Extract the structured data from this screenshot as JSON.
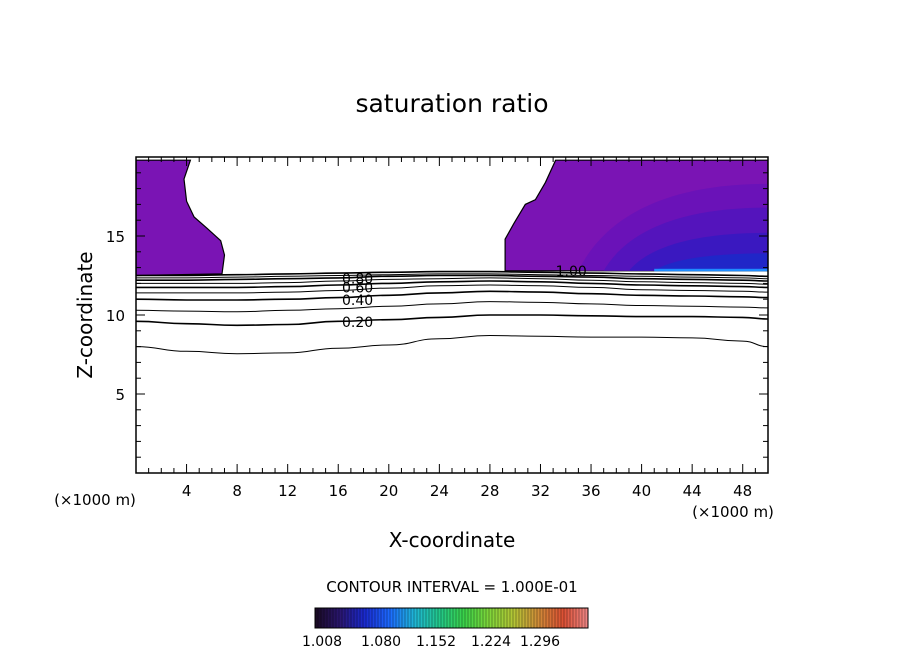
{
  "chart_data": {
    "type": "contour",
    "title": "saturation ratio",
    "xlabel": "X-coordinate",
    "ylabel": "Z-coordinate",
    "x_unit_label": "(×1000 m)",
    "y_unit_label": "(×1000 m)",
    "xlim": [
      0,
      50
    ],
    "ylim": [
      0,
      20
    ],
    "x_ticks": [
      "4",
      "8",
      "12",
      "16",
      "20",
      "24",
      "28",
      "32",
      "36",
      "40",
      "44",
      "48"
    ],
    "y_ticks": [
      "5",
      "10",
      "15"
    ],
    "contour_interval_label": "CONTOUR INTERVAL = 1.000E-01",
    "contour_labels": [
      {
        "text": "0.80",
        "x": 16.3,
        "z": 12.3
      },
      {
        "text": "0.60",
        "x": 16.3,
        "z": 11.75
      },
      {
        "text": "0.40",
        "x": 16.3,
        "z": 10.95
      },
      {
        "text": "0.20",
        "x": 16.3,
        "z": 9.55
      },
      {
        "text": "1.00",
        "x": 33.2,
        "z": 12.8
      }
    ],
    "contour_lines": [
      {
        "level": 0.1,
        "z": [
          8.0,
          7.7,
          7.55,
          7.6,
          7.9,
          8.1,
          8.5,
          8.7,
          8.65,
          8.6,
          8.6,
          8.55,
          8.35,
          8.0
        ]
      },
      {
        "level": 0.2,
        "z": [
          9.6,
          9.45,
          9.35,
          9.4,
          9.6,
          9.7,
          9.85,
          10.0,
          10.0,
          9.95,
          9.9,
          9.9,
          9.85,
          9.75
        ]
      },
      {
        "level": 0.3,
        "z": [
          10.3,
          10.25,
          10.2,
          10.3,
          10.4,
          10.55,
          10.7,
          10.85,
          10.8,
          10.7,
          10.6,
          10.55,
          10.5,
          10.45
        ]
      },
      {
        "level": 0.4,
        "z": [
          11.0,
          10.95,
          10.95,
          11.0,
          11.1,
          11.25,
          11.4,
          11.5,
          11.45,
          11.35,
          11.25,
          11.2,
          11.15,
          11.1
        ]
      },
      {
        "level": 0.5,
        "z": [
          11.4,
          11.4,
          11.4,
          11.45,
          11.55,
          11.7,
          11.85,
          11.9,
          11.85,
          11.75,
          11.6,
          11.55,
          11.5,
          11.45
        ]
      },
      {
        "level": 0.6,
        "z": [
          11.75,
          11.75,
          11.75,
          11.8,
          11.9,
          12.0,
          12.1,
          12.15,
          12.1,
          12.0,
          11.9,
          11.85,
          11.8,
          11.75
        ]
      },
      {
        "level": 0.7,
        "z": [
          12.0,
          12.0,
          12.0,
          12.05,
          12.15,
          12.25,
          12.3,
          12.35,
          12.3,
          12.2,
          12.1,
          12.05,
          12.0,
          11.95
        ]
      },
      {
        "level": 0.8,
        "z": [
          12.2,
          12.2,
          12.25,
          12.3,
          12.35,
          12.45,
          12.5,
          12.5,
          12.45,
          12.4,
          12.3,
          12.25,
          12.2,
          12.15
        ]
      },
      {
        "level": 0.9,
        "z": [
          12.35,
          12.35,
          12.4,
          12.45,
          12.5,
          12.55,
          12.6,
          12.6,
          12.55,
          12.5,
          12.45,
          12.4,
          12.35,
          12.3
        ]
      },
      {
        "level": 1.0,
        "z": [
          12.5,
          12.5,
          12.55,
          12.6,
          12.65,
          12.7,
          12.75,
          12.75,
          12.7,
          12.65,
          12.6,
          12.55,
          12.5,
          12.45
        ]
      }
    ],
    "contour_x": [
      0,
      4,
      8,
      12,
      16,
      20,
      24,
      28,
      32,
      36,
      40,
      44,
      48,
      50
    ],
    "shaded_regions": [
      {
        "name": "left supersaturated region",
        "value": 1.044,
        "outline": [
          [
            0,
            12.5
          ],
          [
            6.8,
            12.6
          ],
          [
            7.0,
            13.8
          ],
          [
            6.7,
            14.7
          ],
          [
            5.6,
            15.5
          ],
          [
            4.6,
            16.2
          ],
          [
            4.0,
            17.2
          ],
          [
            3.8,
            18.6
          ],
          [
            4.3,
            19.8
          ],
          [
            0,
            19.8
          ]
        ]
      },
      {
        "name": "right supersaturated region",
        "value": 1.06,
        "outline": [
          [
            29.2,
            12.8
          ],
          [
            50,
            12.8
          ],
          [
            50,
            19.8
          ],
          [
            33.2,
            19.8
          ],
          [
            32.4,
            18.4
          ],
          [
            31.6,
            17.3
          ],
          [
            30.8,
            17.0
          ],
          [
            29.9,
            15.8
          ],
          [
            29.2,
            14.8
          ]
        ]
      }
    ],
    "shading_inner_levels": [
      {
        "value": 1.1,
        "x": [
          35,
          50
        ],
        "z": [
          12.8,
          18.3
        ]
      },
      {
        "value": 1.15,
        "x": [
          37,
          50
        ],
        "z": [
          12.8,
          16.8
        ]
      },
      {
        "value": 1.2,
        "x": [
          39,
          50
        ],
        "z": [
          12.8,
          15.2
        ]
      },
      {
        "value": 1.26,
        "x": [
          41,
          50
        ],
        "z": [
          12.8,
          13.9
        ]
      }
    ],
    "colorbar": {
      "min": 1.008,
      "max": 1.332,
      "tick_labels": [
        "1.008",
        "1.080",
        "1.152",
        "1.224",
        "1.296"
      ],
      "colors": [
        "#1a0a22",
        "#2a1670",
        "#1a2ad0",
        "#1c6aff",
        "#1fb6d6",
        "#22c88a",
        "#3ad24a",
        "#7ed63a",
        "#b4c636",
        "#d08c38",
        "#dc5034",
        "#f08888"
      ]
    }
  }
}
